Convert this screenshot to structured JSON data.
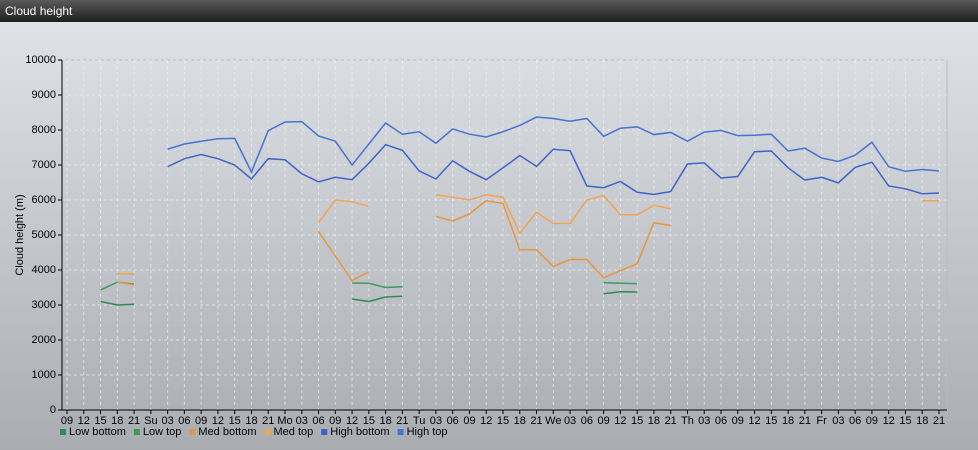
{
  "chart_data": {
    "type": "line",
    "title": "Cloud height",
    "y_label": "Cloud height (m)",
    "categories": [
      "09",
      "12",
      "15",
      "18",
      "21",
      "Su",
      "03",
      "06",
      "09",
      "12",
      "15",
      "18",
      "21",
      "Mo",
      "03",
      "06",
      "09",
      "12",
      "15",
      "18",
      "21",
      "Tu",
      "03",
      "06",
      "09",
      "12",
      "15",
      "18",
      "21",
      "We",
      "03",
      "06",
      "09",
      "12",
      "15",
      "18",
      "21",
      "Th",
      "03",
      "06",
      "09",
      "12",
      "15",
      "18",
      "21",
      "Fr",
      "03",
      "06",
      "09",
      "12",
      "15",
      "18",
      "21"
    ],
    "ylim": [
      0,
      10000
    ],
    "yticks": [
      0,
      1000,
      2000,
      3000,
      4000,
      5000,
      6000,
      7000,
      8000,
      9000,
      10000
    ],
    "grid": true,
    "series": [
      {
        "name": "Low bottom",
        "color": "#2e8b57",
        "values": [
          null,
          null,
          3100,
          3000,
          3020,
          null,
          null,
          null,
          null,
          null,
          null,
          null,
          null,
          null,
          null,
          null,
          null,
          3170,
          3100,
          3230,
          3250,
          null,
          null,
          null,
          null,
          null,
          null,
          null,
          null,
          null,
          null,
          null,
          3320,
          3380,
          3370,
          null,
          null,
          null,
          null,
          null,
          null,
          null,
          null,
          null,
          null,
          null,
          null,
          null,
          null,
          null,
          null,
          null,
          null
        ]
      },
      {
        "name": "Low top",
        "color": "#3a9a62",
        "values": [
          null,
          null,
          3430,
          3650,
          3600,
          null,
          null,
          null,
          null,
          null,
          null,
          null,
          null,
          null,
          null,
          null,
          null,
          3630,
          3620,
          3500,
          3520,
          null,
          null,
          null,
          null,
          null,
          null,
          null,
          null,
          null,
          null,
          null,
          3640,
          3620,
          3610,
          null,
          null,
          null,
          null,
          null,
          null,
          null,
          null,
          null,
          null,
          null,
          null,
          null,
          null,
          null,
          null,
          null,
          null
        ]
      },
      {
        "name": "Med bottom",
        "color": "#e8963e",
        "values": [
          null,
          null,
          null,
          3650,
          3580,
          null,
          null,
          null,
          null,
          null,
          null,
          null,
          null,
          null,
          null,
          5100,
          4400,
          3700,
          3950,
          null,
          null,
          null,
          5530,
          5400,
          5600,
          5980,
          5900,
          4580,
          4580,
          4100,
          4300,
          4300,
          3780,
          3980,
          4180,
          5350,
          5270,
          null,
          null,
          null,
          null,
          null,
          null,
          null,
          null,
          null,
          null,
          null,
          null,
          null,
          null,
          null,
          null
        ]
      },
      {
        "name": "Med top",
        "color": "#f0a552",
        "values": [
          null,
          null,
          null,
          3900,
          3880,
          null,
          null,
          null,
          null,
          null,
          null,
          null,
          null,
          null,
          null,
          5350,
          6000,
          5950,
          5820,
          null,
          null,
          null,
          6150,
          6080,
          6000,
          6150,
          6080,
          5050,
          5650,
          5330,
          5330,
          6000,
          6130,
          5580,
          5580,
          5850,
          5750,
          null,
          null,
          null,
          null,
          null,
          null,
          null,
          null,
          null,
          null,
          null,
          null,
          null,
          null,
          5980,
          5980
        ]
      },
      {
        "name": "High bottom",
        "color": "#3f63c8",
        "values": [
          null,
          null,
          null,
          null,
          null,
          null,
          6950,
          7180,
          7300,
          7180,
          7000,
          6600,
          7180,
          7150,
          6750,
          6520,
          6650,
          6580,
          7050,
          7580,
          7420,
          6830,
          6600,
          7120,
          6820,
          6580,
          6920,
          7270,
          6960,
          7450,
          7410,
          6400,
          6350,
          6530,
          6220,
          6160,
          6240,
          7030,
          7060,
          6630,
          6670,
          7380,
          7400,
          6920,
          6570,
          6650,
          6490,
          6930,
          7080,
          6400,
          6320,
          6180,
          6200
        ]
      },
      {
        "name": "High top",
        "color": "#4a72d4",
        "values": [
          null,
          null,
          null,
          null,
          null,
          null,
          7450,
          7600,
          7680,
          7750,
          7760,
          6800,
          7980,
          8230,
          8240,
          7830,
          7680,
          7000,
          7600,
          8200,
          7880,
          7950,
          7620,
          8030,
          7880,
          7800,
          7950,
          8130,
          8370,
          8330,
          8250,
          8330,
          7820,
          8050,
          8090,
          7870,
          7930,
          7680,
          7940,
          7990,
          7840,
          7850,
          7880,
          7400,
          7480,
          7200,
          7100,
          7280,
          7650,
          6950,
          6820,
          6870,
          6830
        ]
      }
    ]
  }
}
